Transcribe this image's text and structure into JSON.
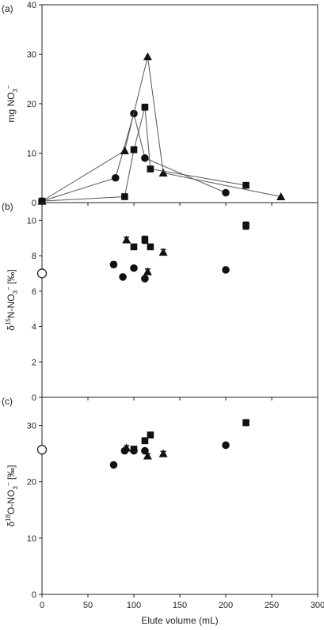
{
  "chart_data": [
    {
      "type": "line",
      "panel_label": "(a)",
      "ylabel": "mg NO3−",
      "xlim": [
        0,
        300
      ],
      "ylim": [
        0,
        40
      ],
      "yticks": [
        0,
        10,
        20,
        30,
        40
      ],
      "x_tick_labels_visible": false,
      "series": [
        {
          "marker": "circle",
          "x": [
            0,
            80,
            100,
            112,
            200
          ],
          "y": [
            0.3,
            5,
            18,
            9,
            2
          ]
        },
        {
          "marker": "triangle",
          "x": [
            0,
            90,
            115,
            132,
            260
          ],
          "y": [
            0.3,
            10.5,
            29.5,
            6,
            1.2
          ]
        },
        {
          "marker": "square",
          "x": [
            0,
            90,
            100,
            112,
            118,
            222
          ],
          "y": [
            0.3,
            1.2,
            10.7,
            19.3,
            6.8,
            3.5
          ]
        }
      ]
    },
    {
      "type": "scatter",
      "panel_label": "(b)",
      "ylabel": "δ15N-NO3− [‰]",
      "xlim": [
        0,
        300
      ],
      "ylim": [
        0,
        11
      ],
      "yticks": [
        0,
        2,
        4,
        6,
        8,
        10
      ],
      "x_tick_labels_visible": false,
      "reference_point": {
        "marker": "open-circle",
        "x": 0,
        "y": 7.0
      },
      "series": [
        {
          "marker": "circle",
          "x": [
            78,
            88,
            100,
            112,
            200
          ],
          "y": [
            7.5,
            6.8,
            7.3,
            6.7,
            7.2
          ],
          "err": [
            0.15,
            0.1,
            0.1,
            0.1,
            0.1
          ]
        },
        {
          "marker": "triangle",
          "x": [
            92,
            115,
            132
          ],
          "y": [
            8.9,
            7.1,
            8.2
          ],
          "err": [
            0.15,
            0.15,
            0.15
          ]
        },
        {
          "marker": "square",
          "x": [
            100,
            112,
            118,
            222
          ],
          "y": [
            8.5,
            8.9,
            8.5,
            9.7
          ],
          "err": [
            0.15,
            0.2,
            0.15,
            0.2
          ]
        }
      ]
    },
    {
      "type": "scatter",
      "panel_label": "(c)",
      "xlabel": "Elute volume (mL)",
      "ylabel": "δ18O-NO3− [‰]",
      "xlim": [
        0,
        300
      ],
      "ylim": [
        0,
        35
      ],
      "yticks": [
        0,
        10,
        20,
        30
      ],
      "xticks": [
        0,
        50,
        100,
        150,
        200,
        250,
        300
      ],
      "reference_point": {
        "marker": "open-circle",
        "x": 0,
        "y": 25.7
      },
      "series": [
        {
          "marker": "circle",
          "x": [
            78,
            90,
            100,
            112,
            200
          ],
          "y": [
            23,
            25.5,
            25.5,
            25.5,
            26.5
          ],
          "err": [
            0.3,
            0.3,
            0.3,
            0.3,
            0.3
          ]
        },
        {
          "marker": "triangle",
          "x": [
            92,
            115,
            132
          ],
          "y": [
            26,
            24.6,
            25
          ],
          "err": [
            0.4,
            0.4,
            0.4
          ]
        },
        {
          "marker": "square",
          "x": [
            100,
            112,
            118,
            222
          ],
          "y": [
            25.8,
            27.3,
            28.3,
            30.5
          ],
          "err": [
            0.4,
            0.5,
            0.5,
            0.5
          ]
        }
      ]
    }
  ]
}
